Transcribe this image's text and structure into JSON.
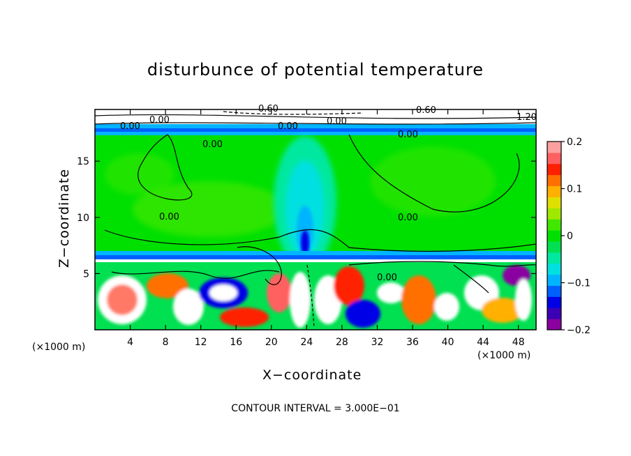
{
  "chart_data": {
    "type": "heatmap",
    "title": "disturbunce of potential temperature",
    "xlabel": "X−coordinate",
    "ylabel": "Z−coordinate",
    "x_unit": "(×1000 m)",
    "y_unit": "(×1000 m)",
    "xlim": [
      0,
      50
    ],
    "ylim": [
      0,
      19.6
    ],
    "x_ticks": [
      "4",
      "8",
      "12",
      "16",
      "20",
      "24",
      "28",
      "32",
      "36",
      "40",
      "44",
      "48"
    ],
    "y_ticks": [
      "5",
      "10",
      "15"
    ],
    "colorbar": {
      "range": [
        -0.2,
        0.2
      ],
      "tick_labels": [
        "0.2",
        "0.1",
        "0",
        "−0.1",
        "−0.2"
      ],
      "colors": [
        "#8a00a0",
        "#3c00b4",
        "#0000e6",
        "#0060ff",
        "#00b4ff",
        "#00e0e0",
        "#00e8a0",
        "#00e050",
        "#00e000",
        "#40e800",
        "#a0e800",
        "#e0e000",
        "#ffb000",
        "#ff7000",
        "#ff2000",
        "#ff6060",
        "#ffa0a0"
      ]
    },
    "contour_labels": [
      "0.00",
      "0.00",
      "0.60",
      "0.60",
      "0.00",
      "1.20",
      "0.00",
      "0.00",
      "0.00",
      "0.00",
      "0.00",
      "0.00"
    ],
    "contour_interval": "CONTOUR INTERVAL = 3.000E−01",
    "regions": [
      {
        "name": "lower turbulent layer",
        "z_range": [
          0,
          6
        ],
        "value_range": [
          -0.2,
          0.2
        ]
      },
      {
        "name": "cool band",
        "z_range": [
          6,
          7
        ],
        "value": -0.08
      },
      {
        "name": "mid troposphere",
        "z_range": [
          7,
          17.7
        ],
        "value": 0.0
      },
      {
        "name": "central cool plume",
        "x_center": 24,
        "z_range": [
          7,
          16
        ],
        "value": -0.1
      },
      {
        "name": "upper layer",
        "z_range": [
          17.7,
          19.6
        ],
        "value": -0.12
      }
    ]
  }
}
